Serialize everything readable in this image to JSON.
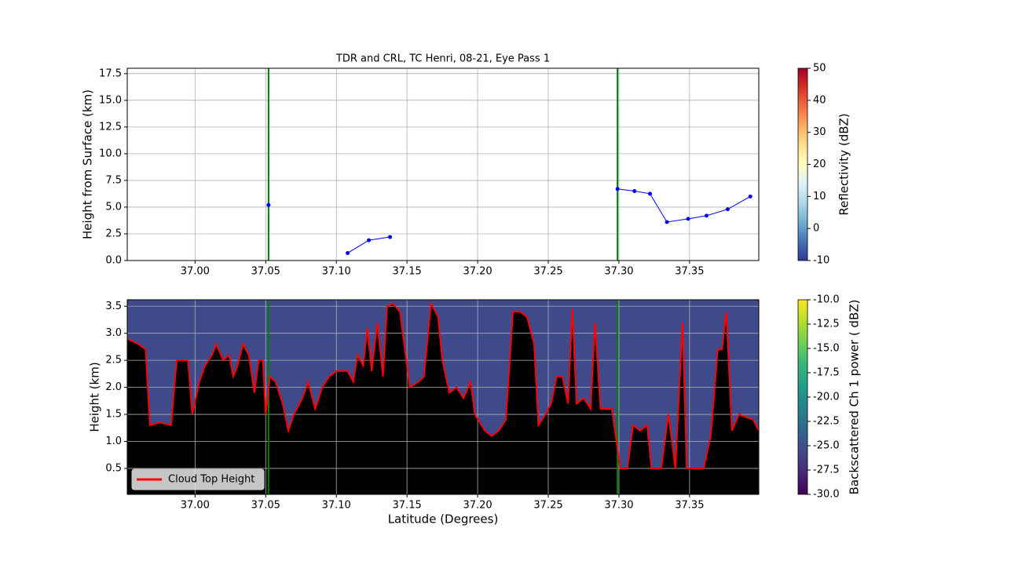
{
  "chart_data": [
    {
      "type": "line",
      "title": "TDR and CRL, TC Henri, 08-21, Eye Pass 1",
      "ylabel": "Height from Surface (km)",
      "xlim": [
        36.952,
        37.399
      ],
      "ylim": [
        0,
        18
      ],
      "xticks": [
        {
          "value": 37.0,
          "label": "37.00"
        },
        37.05,
        {
          "value": 37.1,
          "label": "37.10"
        },
        37.15,
        {
          "value": 37.2,
          "label": "37.20"
        },
        37.25,
        {
          "value": 37.3,
          "label": "37.30"
        },
        37.35
      ],
      "yticks": [
        {
          "value": 0,
          "label": "0.0"
        },
        2.5,
        {
          "value": 5,
          "label": "5.0"
        },
        7.5,
        {
          "value": 10,
          "label": "10.0"
        },
        12.5,
        {
          "value": 15,
          "label": "15.0"
        },
        17.5
      ],
      "grid": true,
      "vlines": [
        37.052,
        37.299
      ],
      "vline_color": "#008000",
      "x": [
        37.052,
        null,
        37.108,
        37.123,
        37.138,
        null,
        37.299,
        37.311,
        37.322,
        37.334,
        37.349,
        37.362,
        37.377,
        37.393
      ],
      "series": [
        {
          "color": "#0000ff",
          "values": [
            5.2,
            null,
            0.7,
            1.9,
            2.2,
            null,
            6.7,
            6.5,
            6.25,
            3.6,
            3.9,
            4.2,
            4.8,
            6.0
          ]
        }
      ],
      "colorbar": {
        "label": "Reflectivity (dBZ)",
        "lim": [
          -10,
          50
        ],
        "ticks": [
          -10,
          0,
          10,
          20,
          30,
          40,
          50
        ],
        "cmap": [
          "#313695",
          "#4575b4",
          "#74add1",
          "#abd9e9",
          "#e0f3f8",
          "#ffffbf",
          "#fee090",
          "#fdae61",
          "#f46d43",
          "#d73027",
          "#a50026"
        ]
      }
    },
    {
      "type": "area",
      "ylabel": "Height (km)",
      "xlabel": "Latitude (Degrees)",
      "xlim": [
        36.952,
        37.399
      ],
      "ylim": [
        0.02,
        3.62
      ],
      "xticks": [
        {
          "value": 37.0,
          "label": "37.00"
        },
        37.05,
        {
          "value": 37.1,
          "label": "37.10"
        },
        37.15,
        {
          "value": 37.2,
          "label": "37.20"
        },
        37.25,
        {
          "value": 37.3,
          "label": "37.30"
        },
        37.35
      ],
      "yticks": [
        0.5,
        {
          "value": 1,
          "label": "1.0"
        },
        1.5,
        {
          "value": 2,
          "label": "2.0"
        },
        2.5,
        {
          "value": 3,
          "label": "3.0"
        },
        3.5
      ],
      "grid": true,
      "vlines": [
        37.052,
        37.299
      ],
      "vline_color": "#008000",
      "legend": "lower left",
      "x": [
        36.952,
        36.96,
        36.965,
        36.968,
        36.975,
        36.983,
        36.987,
        36.995,
        36.998,
        37.003,
        37.007,
        37.012,
        37.015,
        37.02,
        37.024,
        37.027,
        37.03,
        37.034,
        37.038,
        37.042,
        37.045,
        37.048,
        37.05,
        37.053,
        37.057,
        37.062,
        37.066,
        37.07,
        37.076,
        37.08,
        37.085,
        37.09,
        37.095,
        37.1,
        37.108,
        37.112,
        37.115,
        37.119,
        37.122,
        37.125,
        37.129,
        37.133,
        37.136,
        37.14,
        37.145,
        37.149,
        37.152,
        37.158,
        37.162,
        37.167,
        37.172,
        37.175,
        37.18,
        37.185,
        37.19,
        37.195,
        37.198,
        37.205,
        37.21,
        37.215,
        37.22,
        37.225,
        37.23,
        37.235,
        37.24,
        37.243,
        37.248,
        37.252,
        37.256,
        37.26,
        37.264,
        37.267,
        37.27,
        37.275,
        37.28,
        37.283,
        37.287,
        37.295,
        37.301,
        37.306,
        37.31,
        37.315,
        37.32,
        37.323,
        37.33,
        37.335,
        37.34,
        37.345,
        37.348,
        37.36,
        37.365,
        37.37,
        37.373,
        37.376,
        37.38,
        37.385,
        37.395,
        37.399
      ],
      "series": [
        {
          "name": "Cloud Top Height",
          "color": "#ff0000",
          "values": [
            2.9,
            2.8,
            2.7,
            1.3,
            1.35,
            1.3,
            2.5,
            2.5,
            1.5,
            2.1,
            2.4,
            2.6,
            2.8,
            2.5,
            2.6,
            2.2,
            2.4,
            2.8,
            2.6,
            1.9,
            2.5,
            2.5,
            1.5,
            2.2,
            2.1,
            1.7,
            1.2,
            1.5,
            1.8,
            2.1,
            1.6,
            2.0,
            2.2,
            2.3,
            2.3,
            2.1,
            2.6,
            2.4,
            3.1,
            2.3,
            3.2,
            2.2,
            3.5,
            3.55,
            3.4,
            2.6,
            2.0,
            2.1,
            2.2,
            3.55,
            3.3,
            2.5,
            1.9,
            2.0,
            1.8,
            2.1,
            1.5,
            1.2,
            1.1,
            1.2,
            1.4,
            3.4,
            3.4,
            3.3,
            2.8,
            1.3,
            1.5,
            1.7,
            2.2,
            2.2,
            1.7,
            3.45,
            1.7,
            1.8,
            1.6,
            3.2,
            1.6,
            1.6,
            0.5,
            0.5,
            1.3,
            1.2,
            1.3,
            0.5,
            0.5,
            1.5,
            0.5,
            3.2,
            0.5,
            0.5,
            1.1,
            2.7,
            2.7,
            3.4,
            1.2,
            1.5,
            1.4,
            1.2
          ]
        }
      ],
      "colorbar": {
        "label": "Backscattered Ch 1 power ( dBZ)",
        "lim": [
          -30,
          -10
        ],
        "ticks": [
          {
            "value": -30,
            "label": "-30.0"
          },
          -27.5,
          {
            "value": -25,
            "label": "-25.0"
          },
          -22.5,
          {
            "value": -20,
            "label": "-20.0"
          },
          -17.5,
          {
            "value": -15,
            "label": "-15.0"
          },
          -12.5,
          {
            "value": -10,
            "label": "-10.0"
          }
        ],
        "cmap": [
          "#440154",
          "#482878",
          "#3e4a89",
          "#31688e",
          "#26828e",
          "#1f9e89",
          "#35b779",
          "#6ece58",
          "#b5de2b",
          "#fde725"
        ]
      }
    }
  ]
}
